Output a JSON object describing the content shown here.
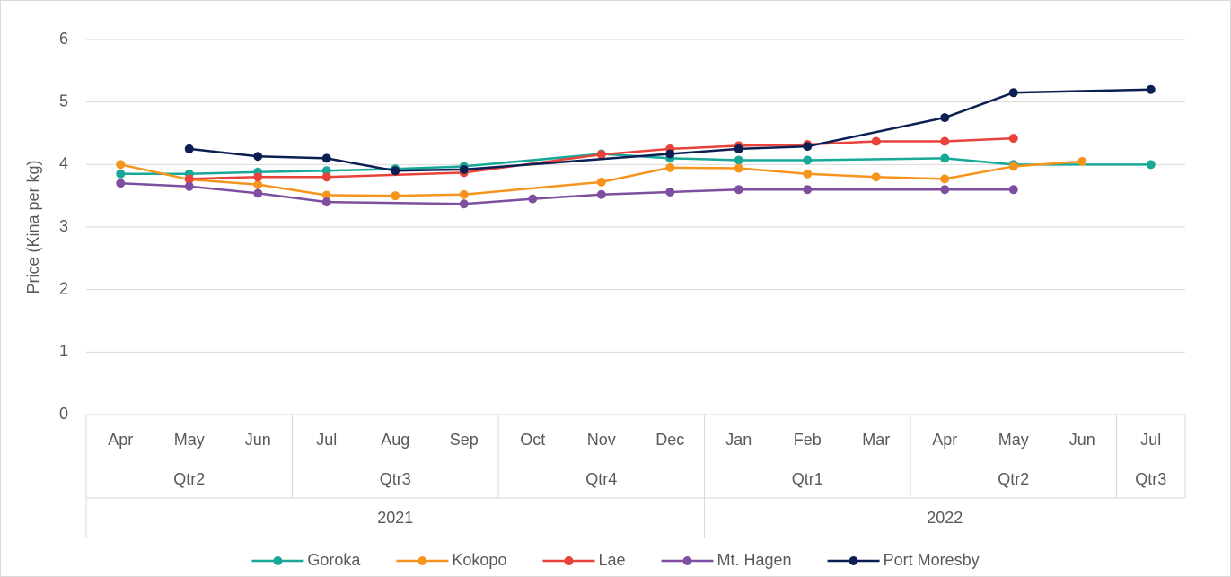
{
  "chart_data": {
    "type": "line",
    "y_label": "Price (Kina per kg)",
    "categories": [
      "Apr",
      "May",
      "Jun",
      "Jul",
      "Aug",
      "Sep",
      "Oct",
      "Nov",
      "Dec",
      "Jan",
      "Feb",
      "Mar",
      "Apr",
      "May",
      "Jun",
      "Jul"
    ],
    "quarters": [
      "Qtr2",
      null,
      null,
      "Qtr3",
      null,
      null,
      "Qtr4",
      null,
      null,
      "Qtr1",
      null,
      null,
      "Qtr2",
      null,
      null,
      "Qtr3"
    ],
    "years": [
      "2021",
      null,
      null,
      null,
      null,
      null,
      null,
      null,
      null,
      "2022",
      null,
      null,
      null,
      null,
      null,
      null
    ],
    "ylim": [
      0,
      6
    ],
    "yticks": [
      0,
      1,
      2,
      3,
      4,
      5,
      6
    ],
    "grid": true,
    "span_gaps": true,
    "legend": "bottom",
    "series": [
      {
        "name": "Goroka",
        "color": "#17a898",
        "values": [
          3.85,
          3.85,
          3.88,
          3.9,
          3.93,
          3.97,
          null,
          4.17,
          4.1,
          4.07,
          4.07,
          null,
          4.1,
          4.0,
          null,
          4.0
        ]
      },
      {
        "name": "Kokopo",
        "color": "#f7941d",
        "values": [
          4.0,
          3.76,
          3.68,
          3.51,
          3.5,
          3.52,
          null,
          3.72,
          3.95,
          3.94,
          3.85,
          3.8,
          3.77,
          3.97,
          4.05,
          null
        ]
      },
      {
        "name": "Lae",
        "color": "#e8423a",
        "values": [
          null,
          3.77,
          3.8,
          3.8,
          null,
          3.87,
          null,
          4.16,
          4.25,
          4.3,
          4.32,
          4.37,
          4.37,
          4.42,
          null,
          null
        ]
      },
      {
        "name": "Mt. Hagen",
        "color": "#7e4fa0",
        "values": [
          3.7,
          3.65,
          3.54,
          3.4,
          null,
          3.37,
          3.45,
          3.52,
          3.56,
          3.6,
          3.6,
          null,
          3.6,
          3.6,
          null,
          null
        ]
      },
      {
        "name": "Port Moresby",
        "color": "#0b1f52",
        "values": [
          null,
          4.25,
          4.13,
          4.1,
          3.9,
          3.92,
          null,
          null,
          4.17,
          4.25,
          4.29,
          null,
          4.75,
          5.15,
          null,
          5.2
        ]
      }
    ]
  }
}
